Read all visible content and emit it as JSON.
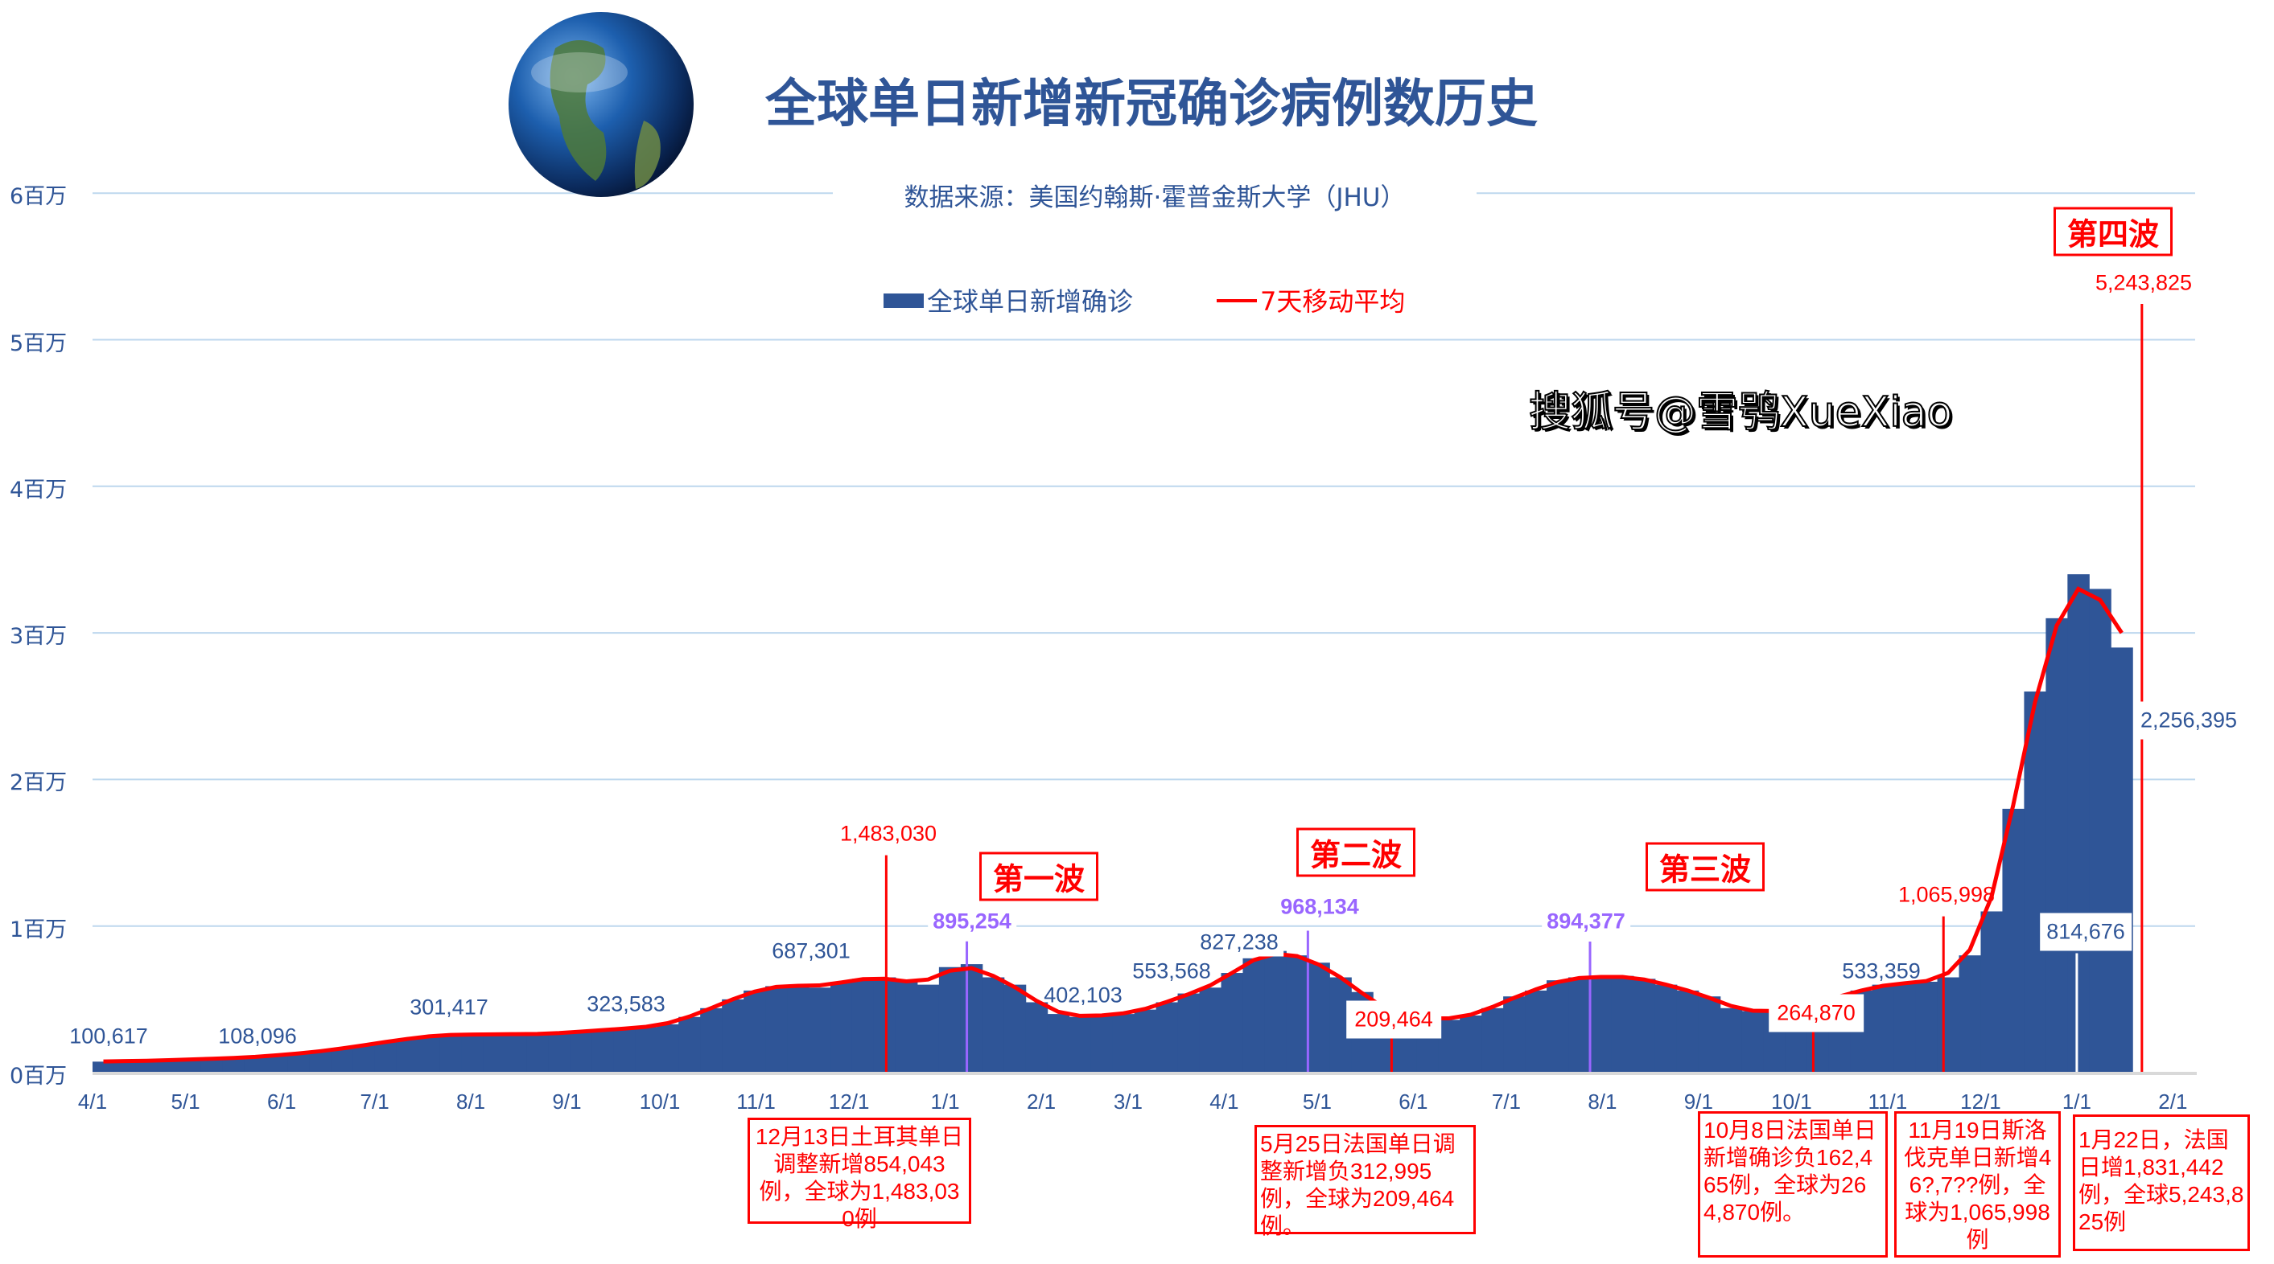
{
  "chart_data": {
    "type": "bar",
    "title": "全球单日新增新冠确诊病例数历史",
    "subtitle": "数据来源：美国约翰斯·霍普金斯大学（JHU）",
    "legend": {
      "placement": "top-center",
      "bar_label": "全球单日新增确诊",
      "line_label": "7天移动平均"
    },
    "colors": {
      "bar": "#2f5597",
      "line": "#ff0000",
      "grid": "#bdd7ee",
      "highlight": "#9966ff",
      "title": "#2f5597"
    },
    "grid": true,
    "ylim": [
      0,
      6000000
    ],
    "yticks": [
      {
        "value": 0,
        "label": "0百万"
      },
      {
        "value": 1000000,
        "label": "1百万"
      },
      {
        "value": 2000000,
        "label": "2百万"
      },
      {
        "value": 3000000,
        "label": "3百万"
      },
      {
        "value": 4000000,
        "label": "4百万"
      },
      {
        "value": 5000000,
        "label": "5百万"
      },
      {
        "value": 6000000,
        "label": "6百万"
      }
    ],
    "xticks": [
      {
        "date": "2020-04-01",
        "label": "4/1"
      },
      {
        "date": "2020-05-01",
        "label": "5/1"
      },
      {
        "date": "2020-06-01",
        "label": "6/1"
      },
      {
        "date": "2020-07-01",
        "label": "7/1"
      },
      {
        "date": "2020-08-01",
        "label": "8/1"
      },
      {
        "date": "2020-09-01",
        "label": "9/1"
      },
      {
        "date": "2020-10-01",
        "label": "10/1"
      },
      {
        "date": "2020-11-01",
        "label": "11/1"
      },
      {
        "date": "2020-12-01",
        "label": "12/1"
      },
      {
        "date": "2021-01-01",
        "label": "1/1"
      },
      {
        "date": "2021-02-01",
        "label": "2/1"
      },
      {
        "date": "2021-03-01",
        "label": "3/1"
      },
      {
        "date": "2021-04-01",
        "label": "4/1"
      },
      {
        "date": "2021-05-01",
        "label": "5/1"
      },
      {
        "date": "2021-06-01",
        "label": "6/1"
      },
      {
        "date": "2021-07-01",
        "label": "7/1"
      },
      {
        "date": "2021-08-01",
        "label": "8/1"
      },
      {
        "date": "2021-09-01",
        "label": "9/1"
      },
      {
        "date": "2021-10-01",
        "label": "10/1"
      },
      {
        "date": "2021-11-01",
        "label": "11/1"
      },
      {
        "date": "2021-12-01",
        "label": "12/1"
      },
      {
        "date": "2022-01-01",
        "label": "1/1"
      },
      {
        "date": "2022-02-01",
        "label": "2/1"
      }
    ],
    "x_start": "2020-04-01",
    "x_step_days": 7,
    "values": [
      75000,
      80000,
      80000,
      85000,
      90000,
      95000,
      100000,
      105000,
      120000,
      130000,
      145000,
      165000,
      185000,
      210000,
      230000,
      250000,
      260000,
      260000,
      260000,
      265000,
      260000,
      270000,
      280000,
      290000,
      300000,
      310000,
      330000,
      380000,
      440000,
      500000,
      560000,
      590000,
      600000,
      580000,
      620000,
      640000,
      650000,
      620000,
      600000,
      720000,
      740000,
      650000,
      600000,
      480000,
      400000,
      380000,
      390000,
      400000,
      430000,
      480000,
      540000,
      580000,
      680000,
      780000,
      830000,
      800000,
      750000,
      650000,
      550000,
      420000,
      380000,
      370000,
      360000,
      390000,
      440000,
      520000,
      560000,
      630000,
      650000,
      650000,
      660000,
      640000,
      600000,
      560000,
      520000,
      440000,
      420000,
      410000,
      440000,
      480000,
      520000,
      560000,
      600000,
      610000,
      620000,
      650000,
      800000,
      1100000,
      1800000,
      2600000,
      3100000,
      3400000,
      3300000,
      2900000
    ],
    "annotations": [
      {
        "label": "100,617",
        "value": 100617,
        "style": "blue"
      },
      {
        "label": "108,096",
        "value": 108096,
        "style": "blue"
      },
      {
        "label": "301,417",
        "value": 301417,
        "style": "blue"
      },
      {
        "label": "323,583",
        "value": 323583,
        "style": "blue"
      },
      {
        "label": "687,301",
        "value": 687301,
        "style": "blue"
      },
      {
        "label": "1,483,030",
        "value": 1483030,
        "date": "2020-12-13",
        "style": "red"
      },
      {
        "label": "895,254",
        "value": 895254,
        "date": "2021-01-08",
        "style": "purple"
      },
      {
        "label": "402,103",
        "value": 402103,
        "style": "blue"
      },
      {
        "label": "553,568",
        "value": 553568,
        "style": "blue"
      },
      {
        "label": "827,238",
        "value": 827238,
        "style": "blue"
      },
      {
        "label": "968,134",
        "value": 968134,
        "date": "2021-04-28",
        "style": "purple"
      },
      {
        "label": "209,464",
        "value": 209464,
        "date": "2021-05-25",
        "style": "red"
      },
      {
        "label": "894,377",
        "value": 894377,
        "date": "2021-07-28",
        "style": "purple"
      },
      {
        "label": "264,870",
        "value": 264870,
        "date": "2021-10-08",
        "style": "red"
      },
      {
        "label": "533,359",
        "value": 533359,
        "style": "blue"
      },
      {
        "label": "1,065,998",
        "value": 1065998,
        "date": "2021-11-19",
        "style": "red"
      },
      {
        "label": "814,676",
        "value": 814676,
        "date": "2022-01-01",
        "style": "blue"
      },
      {
        "label": "5,243,825",
        "value": 5243825,
        "date": "2022-01-22",
        "style": "red"
      },
      {
        "label": "2,256,395",
        "value": 2256395,
        "style": "blue"
      }
    ],
    "waves": [
      "第一波",
      "第二波",
      "第三波",
      "第四波"
    ],
    "notes": [
      "12月13日土耳其单日调整新增854,043例，全球为1,483,030例",
      "5月25日法国单日调整新增负312,995例，全球为209,464例。",
      "10月8日法国单日新增确诊负162,465例，全球为264,870例。",
      "11月19日斯洛伐克单日新增46?,7??例，全球为1,065,998例",
      "1月22日，法国日增1,831,442例，全球5,243,825例"
    ]
  },
  "watermark": "搜狐号@雪鸮XueXiao"
}
